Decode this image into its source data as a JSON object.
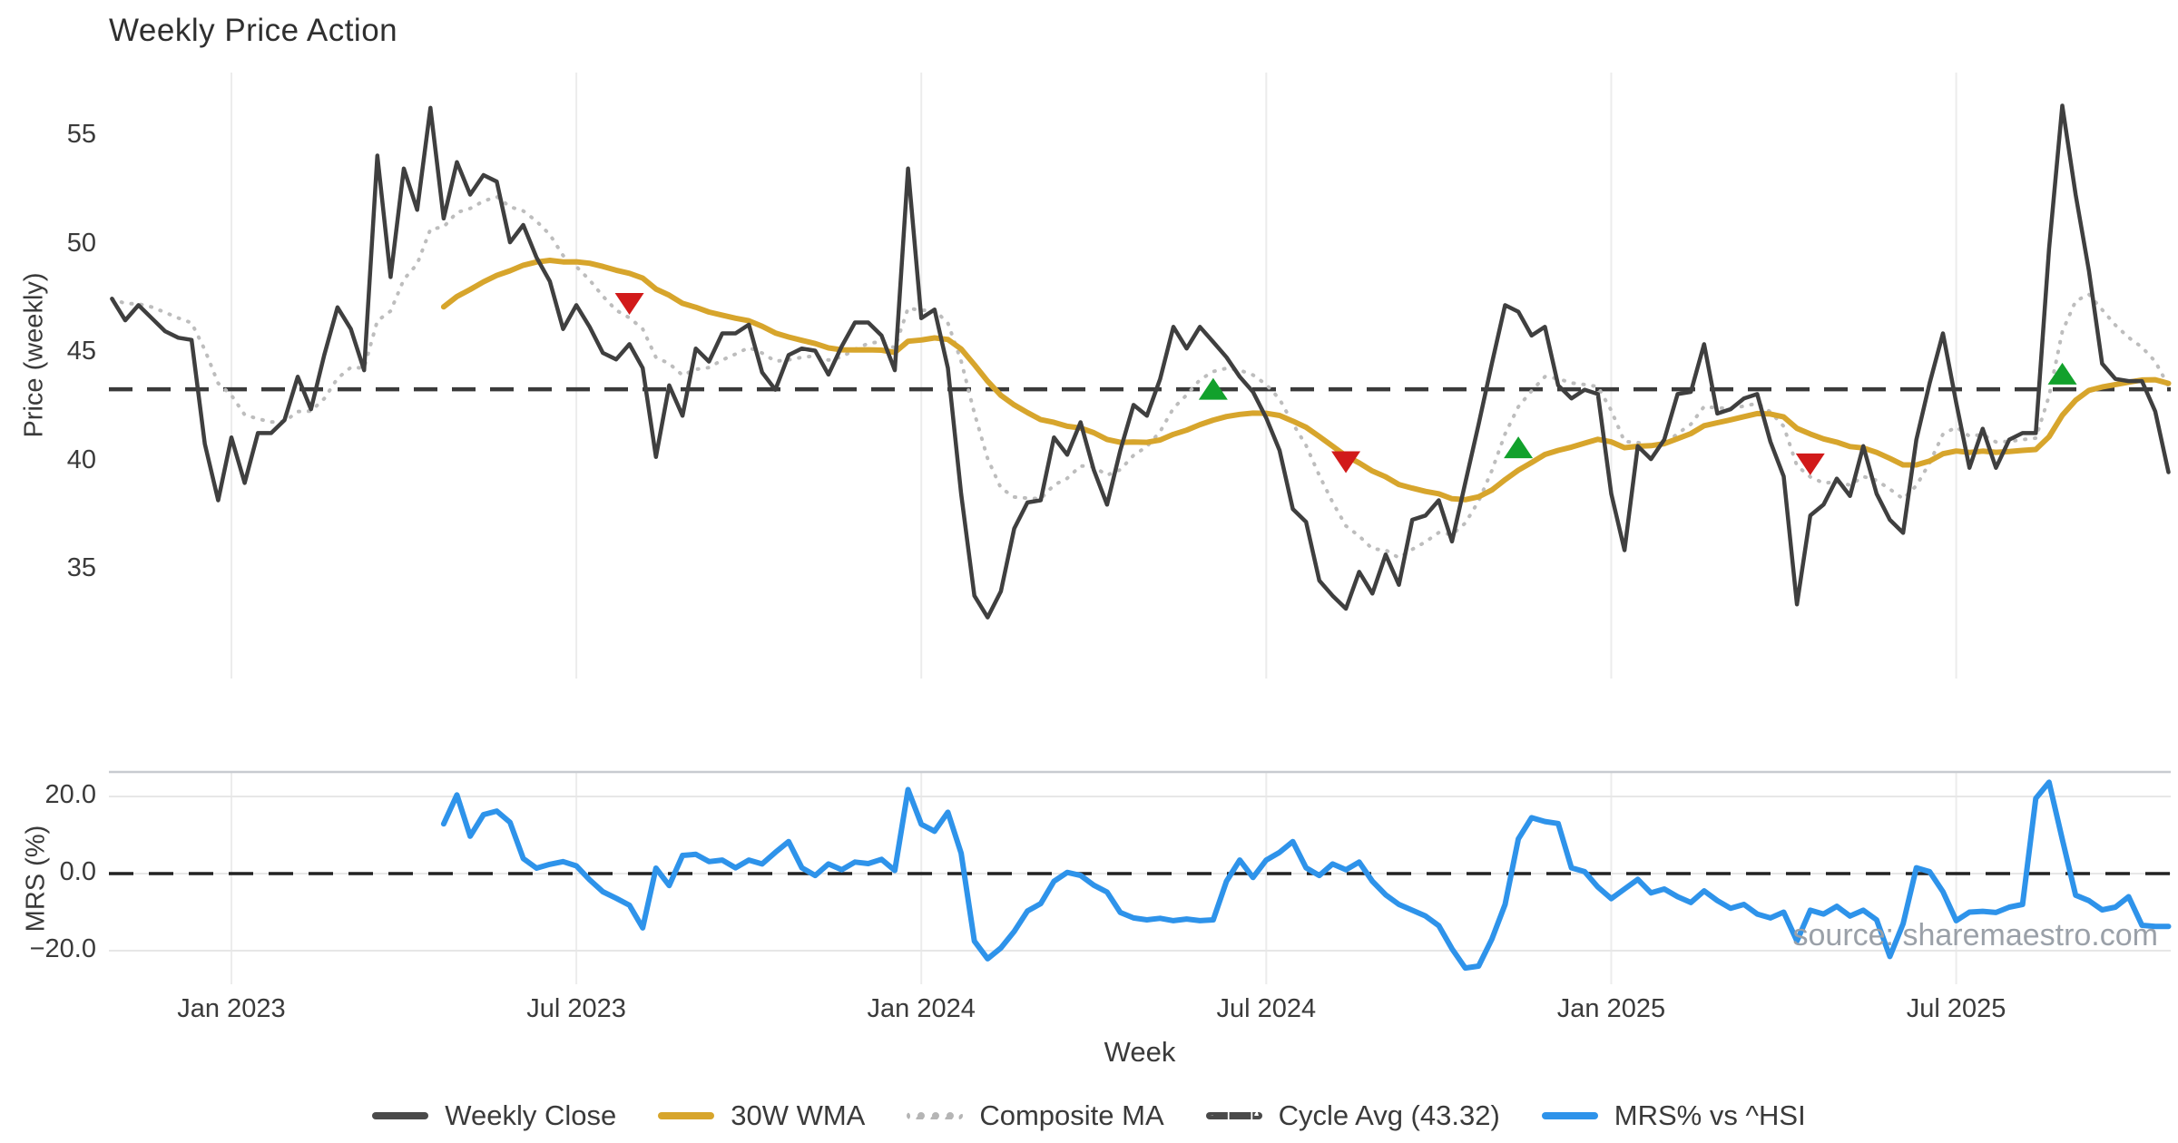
{
  "title": "Weekly Price Action",
  "watermark": "source: sharemaestro.com",
  "x_axis": {
    "label": "Week",
    "ticks": [
      {
        "label": "Jan 2023",
        "week": 9
      },
      {
        "label": "Jul 2023",
        "week": 35
      },
      {
        "label": "Jan 2024",
        "week": 61
      },
      {
        "label": "Jul 2024",
        "week": 87
      },
      {
        "label": "Jan 2025",
        "week": 113
      },
      {
        "label": "Jul 2025",
        "week": 139
      }
    ]
  },
  "price_panel": {
    "ylabel": "Price (weekly)",
    "yticks": [
      {
        "label": "55",
        "value": 55
      },
      {
        "label": "50",
        "value": 50
      },
      {
        "label": "45",
        "value": 45
      },
      {
        "label": "40",
        "value": 40
      },
      {
        "label": "35",
        "value": 35
      }
    ]
  },
  "mrs_panel": {
    "ylabel": "MRS (%)",
    "yticks": [
      {
        "label": "20.0",
        "value": 20
      },
      {
        "label": "0.0",
        "value": 0
      },
      {
        "label": "−20.0",
        "value": -20
      }
    ]
  },
  "legend": [
    {
      "id": "weekly-close",
      "label": "Weekly Close",
      "swatch": "solid",
      "color": "#4a4a4a"
    },
    {
      "id": "30w-wma",
      "label": "30W WMA",
      "swatch": "solid",
      "color": "#d7a52c"
    },
    {
      "id": "composite-ma",
      "label": "Composite MA",
      "swatch": "dotted",
      "color": "#b5b5b5"
    },
    {
      "id": "cycle-avg",
      "label": "Cycle Avg (43.32)",
      "swatch": "dashed",
      "color": "#4a4a4a"
    },
    {
      "id": "mrs-hsi",
      "label": "MRS% vs ^HSI",
      "swatch": "solid",
      "color": "#2e93ea"
    }
  ],
  "colors": {
    "close": "#3f3f3f",
    "wma": "#d7a52c",
    "composite": "#bdbdbd",
    "cycle_avg": "#3a3a3a",
    "mrs": "#2e93ea",
    "mrs_zero": "#222222",
    "marker_up": "#12a12c",
    "marker_down": "#d11a1a",
    "grid_v": "#ececec",
    "grid_h": "#e7e7e7",
    "spine": "#c8cbd0"
  },
  "chart_data": {
    "type": "line",
    "x_unit": "week index, weekly bars from early Nov 2022 to late Oct 2025 (week 0 = first bar; Jan-2023 gridline = week 9; 26 weeks between labeled ticks)",
    "price_ylim": [
      31.5,
      57.5
    ],
    "mrs_ylim": [
      -27,
      26
    ],
    "cycle_avg": 43.32,
    "grid": "vertical gridlines at Jan/Jul ticks in both panels; horizontal gridlines only in MRS panel at 20/0/-20",
    "legend_position": "bottom center",
    "series": [
      {
        "name": "Weekly Close",
        "start_week": 0,
        "values": [
          47.5,
          46.5,
          47.2,
          46.6,
          46.0,
          45.7,
          45.6,
          40.8,
          38.2,
          41.1,
          39.0,
          41.3,
          41.3,
          41.9,
          43.9,
          42.4,
          44.9,
          47.1,
          46.1,
          44.2,
          54.1,
          48.5,
          53.5,
          51.6,
          56.3,
          51.2,
          53.8,
          52.3,
          53.2,
          52.9,
          50.1,
          50.9,
          49.4,
          48.3,
          46.1,
          47.2,
          46.2,
          45.0,
          44.7,
          45.4,
          44.3,
          40.2,
          43.5,
          42.1,
          45.2,
          44.6,
          45.9,
          45.9,
          46.3,
          44.1,
          43.3,
          44.9,
          45.2,
          45.1,
          44.0,
          45.3,
          46.4,
          46.4,
          45.8,
          44.2,
          53.5,
          46.6,
          47.0,
          44.3,
          38.5,
          33.8,
          32.8,
          34.0,
          36.9,
          38.1,
          38.2,
          41.1,
          40.3,
          41.8,
          39.6,
          38.0,
          40.5,
          42.6,
          42.1,
          43.8,
          46.2,
          45.2,
          46.2,
          45.5,
          44.8,
          43.9,
          43.2,
          42.0,
          40.5,
          37.8,
          37.2,
          34.5,
          33.8,
          33.2,
          34.9,
          33.9,
          35.7,
          34.3,
          37.3,
          37.5,
          38.2,
          36.3,
          39.0,
          41.7,
          44.5,
          47.2,
          46.9,
          45.8,
          46.2,
          43.5,
          42.9,
          43.3,
          43.1,
          38.5,
          35.9,
          40.7,
          40.1,
          41.0,
          43.1,
          43.2,
          45.4,
          42.2,
          42.4,
          42.9,
          43.1,
          40.9,
          39.3,
          33.4,
          37.5,
          38.0,
          39.2,
          38.4,
          40.7,
          38.5,
          37.3,
          36.7,
          41.0,
          43.6,
          45.9,
          42.7,
          39.7,
          41.5,
          39.7,
          41.0,
          41.3,
          41.3,
          49.8,
          56.4,
          52.3,
          48.8,
          44.5,
          43.8,
          43.7,
          43.7,
          42.3,
          39.5
        ]
      },
      {
        "name": "30W WMA",
        "derivation": "30-week linearly-weighted moving average of Weekly Close, drawn from week 25",
        "start_week": 25
      },
      {
        "name": "Composite MA",
        "derivation": "smoothed composite (EMA span 8) of Weekly Close, drawn from week 0",
        "start_week": 0
      },
      {
        "name": "MRS% vs ^HSI",
        "start_week": 25,
        "values": [
          12.9,
          20.4,
          9.7,
          15.3,
          16.2,
          13.3,
          3.9,
          1.4,
          2.4,
          3.1,
          2.0,
          -1.6,
          -4.7,
          -6.4,
          -8.2,
          -14.1,
          1.4,
          -3.1,
          4.7,
          5.0,
          3.1,
          3.5,
          1.5,
          3.5,
          2.5,
          5.5,
          8.3,
          1.5,
          -0.5,
          2.5,
          1.0,
          3.0,
          2.6,
          3.7,
          0.8,
          21.8,
          12.8,
          11.0,
          15.9,
          5.3,
          -17.5,
          -22.1,
          -19.3,
          -15.0,
          -9.7,
          -7.8,
          -2.0,
          0.3,
          -0.5,
          -3.0,
          -4.8,
          -10.1,
          -11.5,
          -12.0,
          -11.6,
          -12.2,
          -11.8,
          -12.2,
          -12.0,
          -2.0,
          3.5,
          -1.0,
          3.5,
          5.5,
          8.3,
          1.5,
          -0.5,
          2.5,
          1.0,
          3.0,
          -2.0,
          -5.5,
          -8.0,
          -9.5,
          -11.0,
          -13.5,
          -19.5,
          -24.5,
          -24.0,
          -17.0,
          -8.0,
          9.0,
          14.5,
          13.5,
          13.0,
          1.5,
          0.5,
          -3.5,
          -6.5,
          -4.0,
          -1.5,
          -5.0,
          -4.0,
          -6.0,
          -7.5,
          -4.5,
          -7.0,
          -9.0,
          -8.0,
          -10.5,
          -11.5,
          -10.0,
          -17.5,
          -9.5,
          -10.5,
          -8.5,
          -11.0,
          -9.5,
          -12.0,
          -21.5,
          -13.0,
          1.5,
          0.5,
          -4.7,
          -12.2,
          -10.0,
          -9.8,
          -10.1,
          -8.7,
          -8.0,
          19.5,
          23.7,
          8.9,
          -5.6,
          -7.0,
          -9.4,
          -8.7,
          -6.0,
          -13.4,
          -13.7,
          -13.7
        ]
      }
    ],
    "markers": {
      "sell_red_down_triangles": [
        {
          "week": 39,
          "value": 47.3
        },
        {
          "week": 93,
          "value": 40.0
        },
        {
          "week": 128,
          "value": 39.9
        }
      ],
      "buy_green_up_triangles": [
        {
          "week": 83,
          "value": 43.3
        },
        {
          "week": 106,
          "value": 40.6
        },
        {
          "week": 147,
          "value": 44.0
        }
      ]
    }
  }
}
